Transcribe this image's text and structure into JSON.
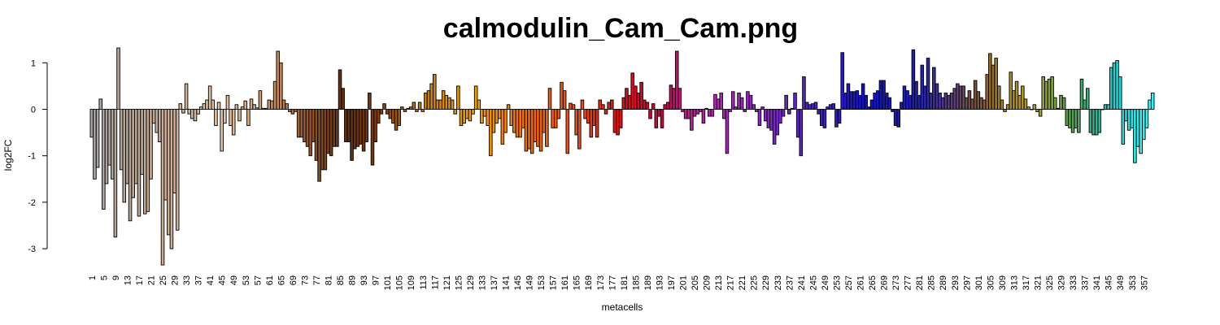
{
  "chart_data": {
    "type": "bar",
    "title": "calmodulin_Cam_Cam.png",
    "xlabel": "metacells",
    "ylabel": "log2FC",
    "ylim": [
      -3.4,
      1.4
    ],
    "yticks": [
      1,
      0,
      -1,
      -2,
      -3
    ],
    "xtick_every": 4,
    "n_bars": 358,
    "values": [
      -0.6,
      -1.5,
      -1.25,
      0.22,
      -2.15,
      -1.6,
      -1.2,
      -1.5,
      -2.75,
      1.32,
      -1.3,
      -2.0,
      -1.6,
      -2.4,
      -1.9,
      -1.6,
      -2.3,
      -1.4,
      -2.25,
      -2.2,
      -1.5,
      -0.3,
      -0.5,
      -0.7,
      -3.35,
      -1.95,
      -2.7,
      -3.0,
      -1.8,
      -2.6,
      0.12,
      -0.08,
      0.55,
      -0.1,
      -0.2,
      -0.25,
      -0.1,
      0.05,
      0.12,
      0.2,
      0.5,
      0.2,
      -0.35,
      0.15,
      -0.9,
      -0.3,
      0.3,
      -0.35,
      -0.55,
      0.1,
      -0.25,
      0.05,
      0.18,
      -0.35,
      0.22,
      0.1,
      0.03,
      0.4,
      0.02,
      0.02,
      0.2,
      0.18,
      0.6,
      1.25,
      1.0,
      0.2,
      0.12,
      -0.05,
      -0.1,
      -0.05,
      -0.6,
      -0.6,
      -0.7,
      -0.8,
      -1.0,
      -0.7,
      -1.1,
      -1.55,
      -1.3,
      -1.3,
      -0.95,
      -1.0,
      -0.8,
      -0.8,
      0.85,
      0.45,
      -0.7,
      -0.7,
      -1.1,
      -0.85,
      -0.8,
      -0.75,
      -0.9,
      -0.7,
      0.35,
      -1.2,
      -0.7,
      -0.3,
      -0.1,
      0.12,
      -0.1,
      -0.2,
      -0.3,
      -0.45,
      -0.35,
      0.05,
      -0.05,
      0.02,
      0.05,
      0.15,
      -0.05,
      0.15,
      -0.05,
      0.35,
      0.4,
      0.55,
      0.75,
      0.2,
      0.2,
      0.4,
      0.3,
      0.25,
      0.2,
      -0.1,
      0.5,
      -0.35,
      -0.3,
      -0.2,
      -0.25,
      -0.1,
      0.5,
      0.2,
      -0.3,
      -0.15,
      -0.35,
      -1.0,
      -0.5,
      -0.3,
      -0.2,
      -0.75,
      -0.5,
      0.1,
      -0.35,
      -0.5,
      -0.6,
      -0.6,
      -0.4,
      -0.9,
      -0.85,
      -0.95,
      -0.7,
      -0.8,
      -0.9,
      -0.5,
      -0.8,
      0.45,
      -0.4,
      -0.4,
      -0.2,
      0.58,
      0.4,
      -0.95,
      0.13,
      0.1,
      -0.55,
      -0.85,
      0.2,
      -0.2,
      -0.3,
      -0.6,
      -0.35,
      -0.6,
      0.2,
      0.1,
      -0.1,
      0.15,
      0.2,
      -0.5,
      -0.55,
      -0.4,
      0.25,
      0.45,
      0.3,
      0.78,
      0.5,
      0.35,
      0.58,
      0.2,
      0.15,
      -0.2,
      0.12,
      -0.4,
      -0.15,
      -0.4,
      0.1,
      0.15,
      0.52,
      0.45,
      1.25,
      0.45,
      -0.05,
      -0.2,
      -0.2,
      -0.45,
      -0.15,
      -0.1,
      -0.05,
      -0.3,
      0.02,
      -0.15,
      -0.15,
      0.32,
      0.22,
      0.35,
      -0.2,
      -0.95,
      -0.05,
      0.38,
      0.05,
      0.35,
      0.25,
      -0.05,
      0.38,
      0.3,
      0.1,
      -0.05,
      -0.35,
      0.05,
      -0.25,
      -0.4,
      -0.45,
      -0.75,
      -0.55,
      -0.3,
      -0.15,
      0.3,
      -0.1,
      0.02,
      0.35,
      -0.6,
      -1.0,
      0.7,
      0.15,
      0.1,
      0.12,
      0.15,
      -0.1,
      -0.35,
      -0.4,
      0.05,
      0.1,
      0.12,
      -0.38,
      -0.3,
      1.22,
      0.35,
      0.55,
      0.38,
      0.38,
      0.4,
      0.3,
      0.55,
      0.3,
      0.05,
      0.2,
      0.35,
      0.4,
      0.62,
      0.62,
      0.35,
      0.25,
      -0.05,
      -0.35,
      -0.38,
      0.15,
      0.5,
      0.4,
      0.3,
      1.28,
      0.6,
      0.3,
      0.95,
      0.5,
      1.1,
      0.35,
      0.9,
      0.55,
      0.35,
      0.25,
      0.35,
      0.3,
      0.35,
      0.45,
      0.55,
      0.5,
      0.5,
      0.25,
      0.4,
      0.22,
      0.62,
      0.38,
      0.25,
      0.2,
      0.75,
      1.2,
      0.95,
      1.1,
      0.5,
      0.2,
      -0.05,
      0.1,
      0.8,
      0.4,
      0.6,
      0.3,
      0.5,
      0.22,
      0.05,
      0.0,
      0.1,
      -0.05,
      -0.15,
      0.7,
      0.6,
      0.65,
      0.7,
      0.25,
      0.02,
      0.3,
      0.25,
      -0.35,
      -0.4,
      -0.5,
      -0.4,
      -0.5,
      0.65,
      0.2,
      0.45,
      -0.5,
      -0.55,
      -0.55,
      -0.5,
      0.0,
      0.1,
      0.1,
      0.9,
      1.0,
      1.05,
      0.7,
      -0.75,
      -0.25,
      -0.45,
      -0.4,
      -1.15,
      -0.8,
      -0.95,
      -0.65,
      -0.4,
      0.2,
      0.35
    ],
    "color_stops": [
      {
        "at": 0,
        "color": "#a6a6a6"
      },
      {
        "at": 10,
        "color": "#b3a699"
      },
      {
        "at": 25,
        "color": "#c9ad93"
      },
      {
        "at": 45,
        "color": "#e2c4a0"
      },
      {
        "at": 62,
        "color": "#c68e5a"
      },
      {
        "at": 72,
        "color": "#9a5a2c"
      },
      {
        "at": 86,
        "color": "#5f2e0e"
      },
      {
        "at": 96,
        "color": "#7a3a08"
      },
      {
        "at": 112,
        "color": "#c27a10"
      },
      {
        "at": 130,
        "color": "#f2a000"
      },
      {
        "at": 148,
        "color": "#f26a00"
      },
      {
        "at": 165,
        "color": "#ee4a10"
      },
      {
        "at": 178,
        "color": "#e01010"
      },
      {
        "at": 194,
        "color": "#cc0044"
      },
      {
        "at": 200,
        "color": "#c81888"
      },
      {
        "at": 212,
        "color": "#b522bb"
      },
      {
        "at": 228,
        "color": "#8a22cc"
      },
      {
        "at": 244,
        "color": "#4a25cc"
      },
      {
        "at": 262,
        "color": "#1010cc"
      },
      {
        "at": 280,
        "color": "#2020b0"
      },
      {
        "at": 290,
        "color": "#553a88"
      },
      {
        "at": 300,
        "color": "#7a5530"
      },
      {
        "at": 310,
        "color": "#b08a20"
      },
      {
        "at": 320,
        "color": "#a8a030"
      },
      {
        "at": 330,
        "color": "#5a9f40"
      },
      {
        "at": 338,
        "color": "#30b080"
      },
      {
        "at": 346,
        "color": "#20cccc"
      },
      {
        "at": 357,
        "color": "#30f5f5"
      }
    ]
  }
}
